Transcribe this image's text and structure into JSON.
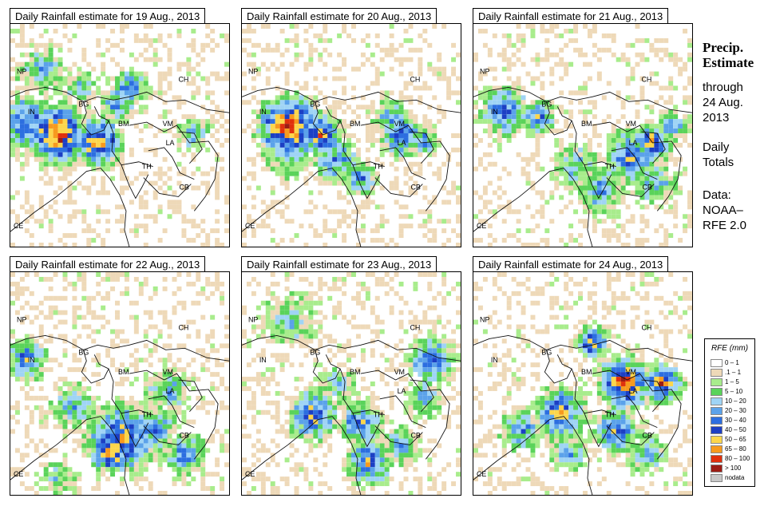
{
  "panels": [
    {
      "id": "p1",
      "title": "Daily Rainfall estimate for  19 Aug., 2013"
    },
    {
      "id": "p2",
      "title": "Daily Rainfall estimate for  20 Aug., 2013"
    },
    {
      "id": "p3",
      "title": "Daily Rainfall estimate for  21 Aug., 2013"
    },
    {
      "id": "p4",
      "title": "Daily Rainfall estimate for  22 Aug., 2013"
    },
    {
      "id": "p5",
      "title": "Daily Rainfall estimate for  23 Aug., 2013"
    },
    {
      "id": "p6",
      "title": "Daily Rainfall estimate for  24 Aug., 2013"
    }
  ],
  "country_labels": [
    "NP",
    "CH",
    "IN",
    "BG",
    "BM",
    "VM",
    "LA",
    "TH",
    "CB",
    "CE"
  ],
  "side": {
    "title_line1": "Precip.",
    "title_line2": "Estimate",
    "through": "through",
    "date_line1": "24 Aug.",
    "date_line2": "2013",
    "daily1": "Daily",
    "daily2": "Totals",
    "data1": "Data:",
    "data2": "NOAA–",
    "data3": "RFE 2.0"
  },
  "legend": {
    "title": "RFE (mm)",
    "items": [
      {
        "label": "0 – 1",
        "color": "#ffffff"
      },
      {
        "label": ".1 – 1",
        "color": "#eed9b8"
      },
      {
        "label": "1 – 5",
        "color": "#a8ec8c"
      },
      {
        "label": "5 – 10",
        "color": "#5ad35a"
      },
      {
        "label": "10 – 20",
        "color": "#9fd4f5"
      },
      {
        "label": "20 – 30",
        "color": "#5ba2ea"
      },
      {
        "label": "30 – 40",
        "color": "#2c6ee0"
      },
      {
        "label": "40 – 50",
        "color": "#1c3fc4"
      },
      {
        "label": "50 – 65",
        "color": "#fcd64c"
      },
      {
        "label": "65 – 80",
        "color": "#f79a1e"
      },
      {
        "label": "80 – 100",
        "color": "#e0300c"
      },
      {
        "label": "> 100",
        "color": "#9c1c14"
      },
      {
        "label": "nodata",
        "color": "#c8c8c8"
      }
    ]
  }
}
